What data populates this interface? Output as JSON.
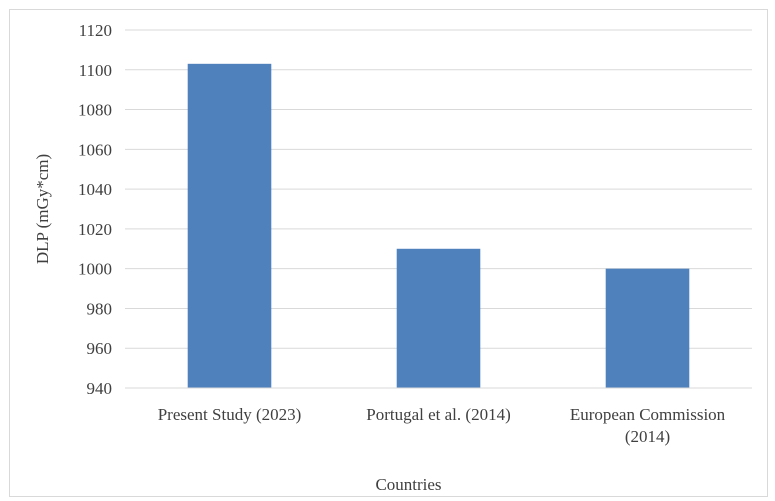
{
  "chart_data": {
    "type": "bar",
    "title": "",
    "xlabel": "Countries",
    "ylabel": "DLP (mGy*cm)",
    "ylim": [
      940,
      1120
    ],
    "ytick_step": 20,
    "yticks": [
      "940",
      "960",
      "980",
      "1000",
      "1020",
      "1040",
      "1060",
      "1080",
      "1100",
      "1120"
    ],
    "categories": [
      [
        "Present Study (2023)"
      ],
      [
        "Portugal et al. (2014)"
      ],
      [
        "European Commission",
        "(2014)"
      ]
    ],
    "values": [
      1103,
      1010,
      1000
    ],
    "bar_color": "#4f81bd",
    "grid": true,
    "grid_color": "#d9d9d9",
    "legend": "none"
  }
}
